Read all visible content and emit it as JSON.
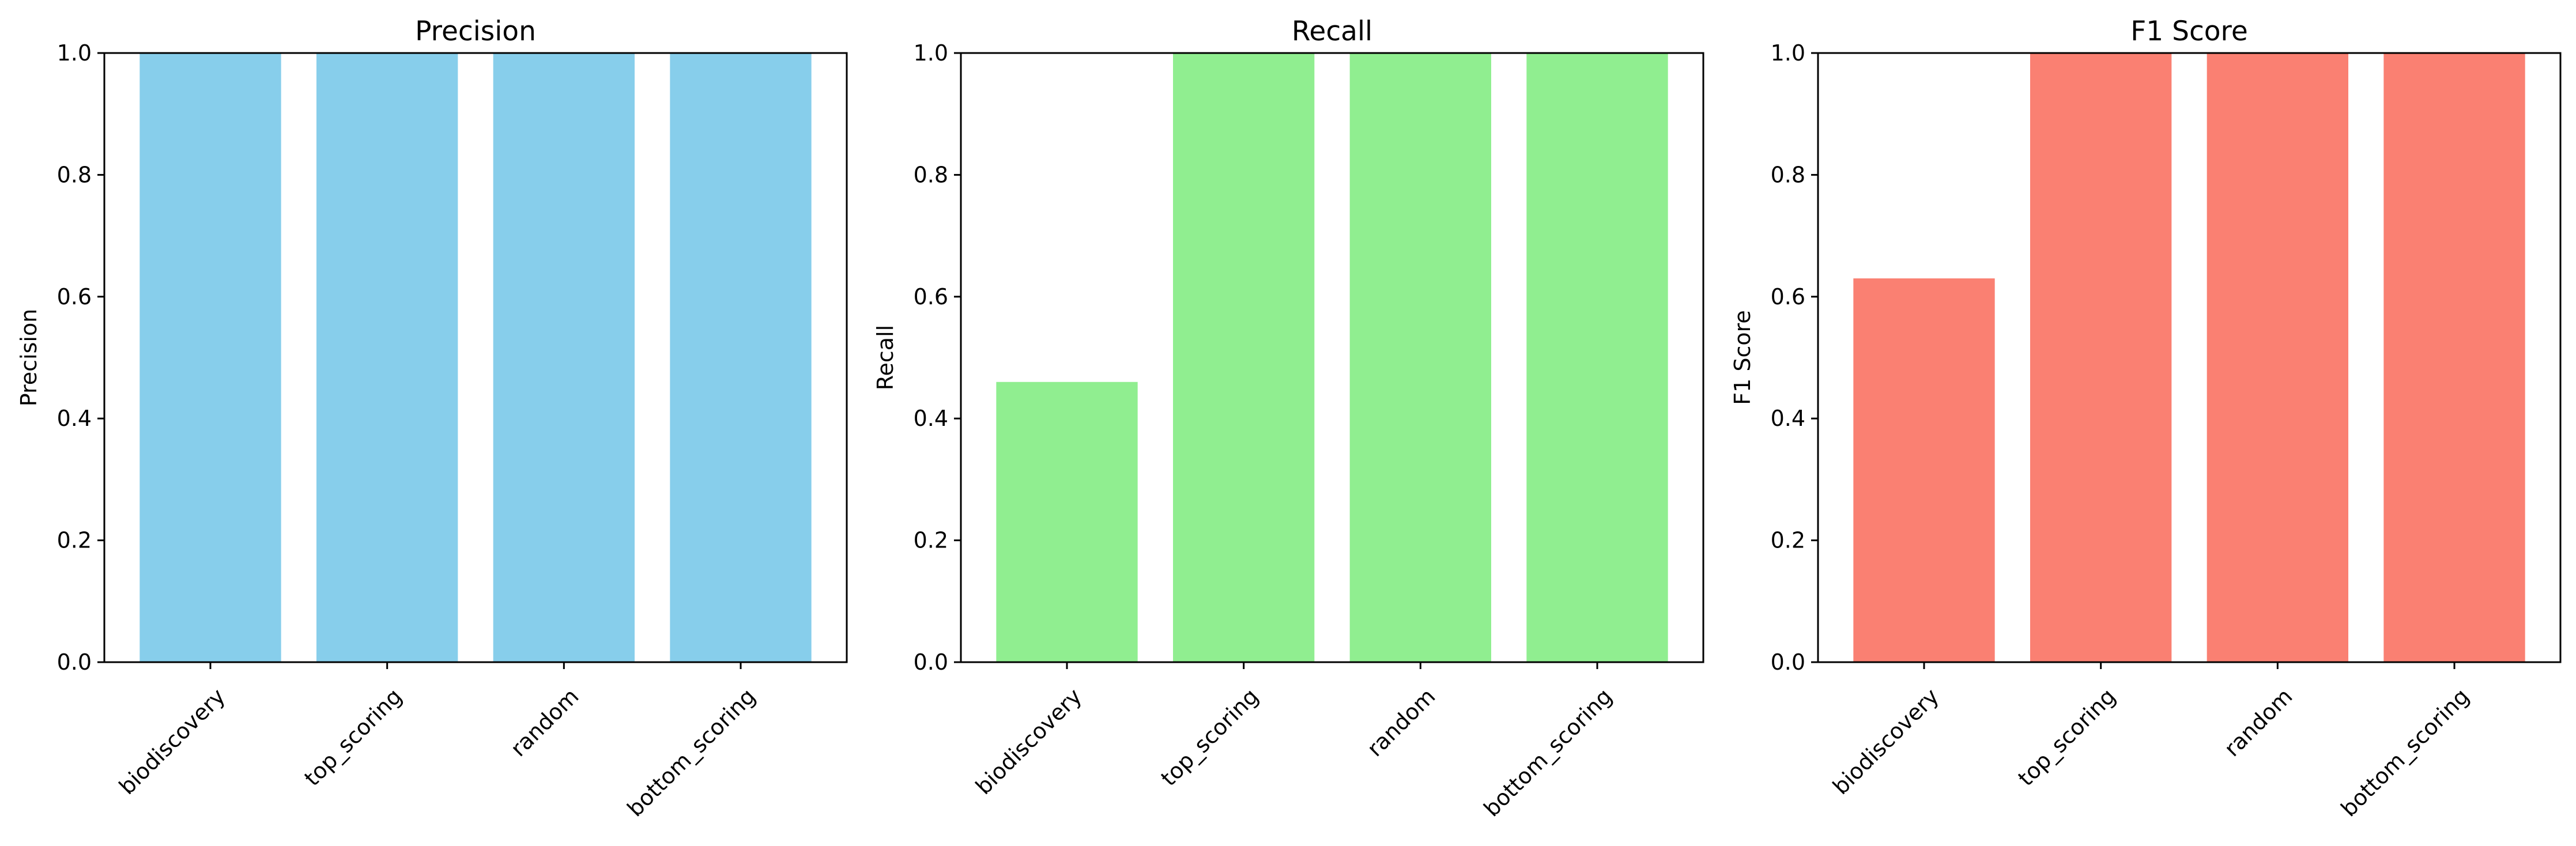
{
  "chart_data": [
    {
      "type": "bar",
      "title": "Precision",
      "xlabel": "",
      "ylabel": "Precision",
      "categories": [
        "biodiscovery",
        "top_scoring",
        "random",
        "bottom_scoring"
      ],
      "values": [
        1.0,
        1.0,
        1.0,
        1.0
      ],
      "ylim": [
        0,
        1.0
      ],
      "yticks": [
        "0.0",
        "0.2",
        "0.4",
        "0.6",
        "0.8",
        "1.0"
      ],
      "color": "#87ceeb",
      "grid": false
    },
    {
      "type": "bar",
      "title": "Recall",
      "xlabel": "",
      "ylabel": "Recall",
      "categories": [
        "biodiscovery",
        "top_scoring",
        "random",
        "bottom_scoring"
      ],
      "values": [
        0.46,
        1.0,
        1.0,
        1.0
      ],
      "ylim": [
        0,
        1.0
      ],
      "yticks": [
        "0.0",
        "0.2",
        "0.4",
        "0.6",
        "0.8",
        "1.0"
      ],
      "color": "#90ee90",
      "grid": false
    },
    {
      "type": "bar",
      "title": "F1 Score",
      "xlabel": "",
      "ylabel": "F1 Score",
      "categories": [
        "biodiscovery",
        "top_scoring",
        "random",
        "bottom_scoring"
      ],
      "values": [
        0.63,
        1.0,
        1.0,
        1.0
      ],
      "ylim": [
        0,
        1.0
      ],
      "yticks": [
        "0.0",
        "0.2",
        "0.4",
        "0.6",
        "0.8",
        "1.0"
      ],
      "color": "#fa8072",
      "grid": false
    }
  ]
}
